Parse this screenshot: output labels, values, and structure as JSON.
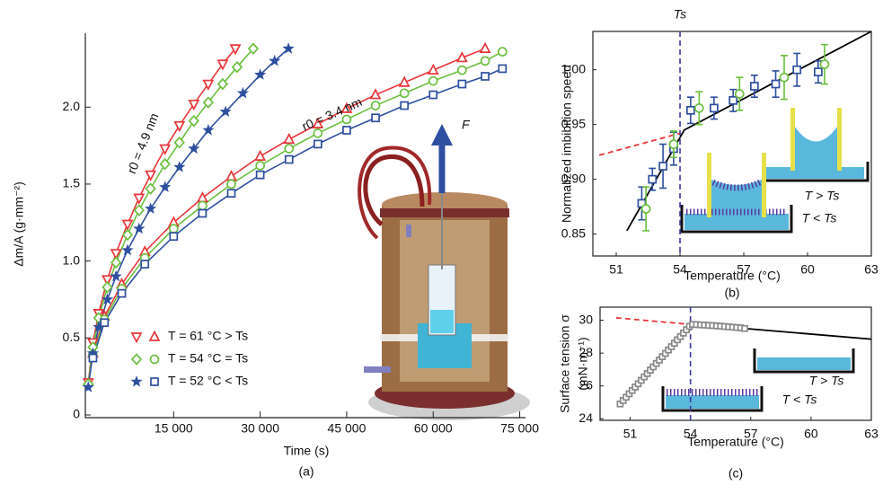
{
  "chart_data": [
    {
      "type": "line",
      "x_label": "Time (s)",
      "y_label": "Δm/A (g·mm⁻²)",
      "panel_label": "(a)",
      "xlim": [
        0,
        76000
      ],
      "ylim": [
        0,
        2.48
      ],
      "xticks": [
        {
          "value": 15000,
          "label": "15 000"
        },
        {
          "value": 30000,
          "label": "30 000"
        },
        {
          "value": 45000,
          "label": "45 000"
        },
        {
          "value": 60000,
          "label": "60 000"
        },
        {
          "value": 75000,
          "label": "75 000"
        }
      ],
      "yticks": [
        0,
        0.5,
        {
          "value": 1,
          "label": "1.0"
        },
        1.5,
        {
          "value": 2,
          "label": "2.0"
        }
      ],
      "curve_labels": [
        "r0 = 4.9 nm",
        "r0 = 3.4 nm"
      ],
      "annotation": "F",
      "series": [
        {
          "name": "T = 61 °C > Ts",
          "color": "#e8363a",
          "curves": [
            {
              "marker": "triangle-down",
              "x": [
                200,
                1000,
                2000,
                3500,
                5000,
                7000,
                9000,
                11000,
                13500,
                16000,
                18500,
                21000,
                23500,
                25700
              ],
              "values": [
                0.21,
                0.47,
                0.66,
                0.88,
                1.05,
                1.24,
                1.41,
                1.56,
                1.73,
                1.88,
                2.02,
                2.15,
                2.28,
                2.38
              ]
            },
            {
              "marker": "triangle",
              "x": [
                1000,
                3000,
                6000,
                10000,
                15000,
                20000,
                25000,
                30000,
                35000,
                40000,
                45000,
                50000,
                55000,
                60000,
                65000,
                69000
              ],
              "values": [
                0.4,
                0.64,
                0.85,
                1.06,
                1.25,
                1.41,
                1.55,
                1.68,
                1.79,
                1.89,
                1.99,
                2.08,
                2.16,
                2.24,
                2.32,
                2.38
              ]
            }
          ]
        },
        {
          "name": "T = 54 °C = Ts",
          "color": "#6cbf3f",
          "curves": [
            {
              "marker": "diamond",
              "x": [
                200,
                1000,
                2000,
                3500,
                5000,
                7000,
                9000,
                11000,
                13500,
                16000,
                18500,
                21000,
                23500,
                26000,
                28800
              ],
              "values": [
                0.2,
                0.44,
                0.63,
                0.83,
                0.99,
                1.17,
                1.33,
                1.47,
                1.63,
                1.77,
                1.91,
                2.03,
                2.15,
                2.26,
                2.38
              ]
            },
            {
              "marker": "circle",
              "x": [
                1000,
                3000,
                6000,
                10000,
                15000,
                20000,
                25000,
                30000,
                35000,
                40000,
                45000,
                50000,
                55000,
                60000,
                65000,
                69000,
                72000
              ],
              "values": [
                0.39,
                0.62,
                0.82,
                1.02,
                1.21,
                1.36,
                1.5,
                1.62,
                1.73,
                1.83,
                1.92,
                2.01,
                2.09,
                2.17,
                2.24,
                2.3,
                2.36
              ]
            }
          ]
        },
        {
          "name": "T = 52 °C < Ts",
          "color": "#2e4fa0",
          "curves": [
            {
              "marker": "star",
              "x": [
                200,
                1000,
                2000,
                3500,
                5000,
                7000,
                9000,
                11000,
                13500,
                16000,
                18500,
                21000,
                24000,
                27000,
                30000,
                32500,
                34900
              ],
              "values": [
                0.18,
                0.4,
                0.57,
                0.75,
                0.9,
                1.07,
                1.21,
                1.34,
                1.48,
                1.61,
                1.73,
                1.85,
                1.97,
                2.09,
                2.21,
                2.3,
                2.38
              ]
            },
            {
              "marker": "square",
              "x": [
                1000,
                3000,
                6000,
                10000,
                15000,
                20000,
                25000,
                30000,
                35000,
                40000,
                45000,
                50000,
                55000,
                60000,
                65000,
                69000,
                72000
              ],
              "values": [
                0.37,
                0.6,
                0.79,
                0.98,
                1.16,
                1.31,
                1.44,
                1.56,
                1.66,
                1.76,
                1.85,
                1.93,
                2.01,
                2.08,
                2.15,
                2.2,
                2.25
              ]
            }
          ]
        }
      ]
    },
    {
      "type": "scatter",
      "x_label": "Temperature (°C)",
      "y_label": "Normalized imbibition speed",
      "panel_label": "(b)",
      "ts_label": "Ts",
      "vline": 54,
      "vline_color": "#3a3aa0",
      "inset_labels": [
        "T > Ts",
        "T < Ts"
      ],
      "xlim": [
        49.9,
        63
      ],
      "ylim": [
        0.83,
        1.035
      ],
      "xticks": [
        51,
        54,
        57,
        60,
        63
      ],
      "yticks": [
        0.85,
        {
          "value": 0.9,
          "label": "0.90"
        },
        0.95,
        {
          "value": 1,
          "label": "1.00"
        }
      ],
      "series": [
        {
          "color": "#2e4fa0",
          "marker": "square",
          "x": [
            52.2,
            52.7,
            53.2,
            53.7,
            54.5,
            55.6,
            56.5,
            57.5,
            58.5,
            59.5,
            60.5
          ],
          "values": [
            0.878,
            0.9,
            0.912,
            0.928,
            0.963,
            0.965,
            0.972,
            0.985,
            0.987,
            1.0,
            0.998
          ],
          "errors": [
            0.015,
            0.01,
            0.02,
            0.015,
            0.012,
            0.01,
            0.01,
            0.01,
            0.012,
            0.015,
            0.01
          ]
        },
        {
          "color": "#6cbf3f",
          "marker": "circle",
          "x": [
            52.4,
            53.7,
            54.9,
            56.8,
            58.9,
            60.8
          ],
          "values": [
            0.873,
            0.932,
            0.965,
            0.978,
            0.993,
            1.005
          ],
          "errors": [
            0.02,
            0.012,
            0.015,
            0.015,
            0.02,
            0.018
          ]
        }
      ],
      "fit_lines": [
        {
          "color": "#000000",
          "dashed": false,
          "x": [
            51.5,
            54.2,
            63
          ],
          "values": [
            0.853,
            0.945,
            1.035
          ]
        },
        {
          "color": "#e8363a",
          "dashed": true,
          "x": [
            50.2,
            54
          ],
          "values": [
            0.922,
            0.942
          ]
        }
      ]
    },
    {
      "type": "scatter",
      "x_label": "Temperature (°C)",
      "y_label": [
        "Surface tension σ",
        "(mN·m⁻¹)"
      ],
      "panel_label": "(c)",
      "vline": 54,
      "vline_color": "#3a3aa0",
      "inset_labels": [
        "T > Ts",
        "T < Ts"
      ],
      "xlim": [
        49.5,
        63
      ],
      "ylim": [
        23.9,
        30.8
      ],
      "xticks": [
        51,
        54,
        57,
        60,
        63
      ],
      "yticks": [
        24,
        26,
        28,
        30
      ],
      "series": [
        {
          "color": "#888888",
          "marker": "square",
          "x": [
            50.5,
            50.65,
            50.8,
            50.95,
            51.1,
            51.25,
            51.4,
            51.55,
            51.7,
            51.85,
            52.0,
            52.15,
            52.3,
            52.45,
            52.6,
            52.75,
            52.9,
            53.05,
            53.2,
            53.35,
            53.5,
            53.65,
            53.8,
            53.95,
            54.1,
            54.3,
            54.5,
            54.7,
            54.9,
            55.1,
            55.3,
            55.5,
            55.7,
            55.9,
            56.1,
            56.3,
            56.5,
            56.7
          ],
          "values": [
            24.9,
            25.11,
            25.31,
            25.52,
            25.72,
            25.93,
            26.13,
            26.34,
            26.55,
            26.75,
            26.96,
            27.16,
            27.37,
            27.57,
            27.78,
            27.98,
            28.19,
            28.39,
            28.6,
            28.81,
            29.01,
            29.22,
            29.42,
            29.63,
            29.75,
            29.74,
            29.72,
            29.71,
            29.69,
            29.68,
            29.66,
            29.64,
            29.62,
            29.6,
            29.58,
            29.56,
            29.54,
            29.5
          ]
        }
      ],
      "fit_lines": [
        {
          "color": "#000000",
          "dashed": false,
          "x": [
            56.7,
            63
          ],
          "values": [
            29.5,
            28.85
          ]
        },
        {
          "color": "#e8363a",
          "dashed": true,
          "x": [
            50.3,
            54
          ],
          "values": [
            30.15,
            29.75
          ]
        }
      ]
    }
  ]
}
